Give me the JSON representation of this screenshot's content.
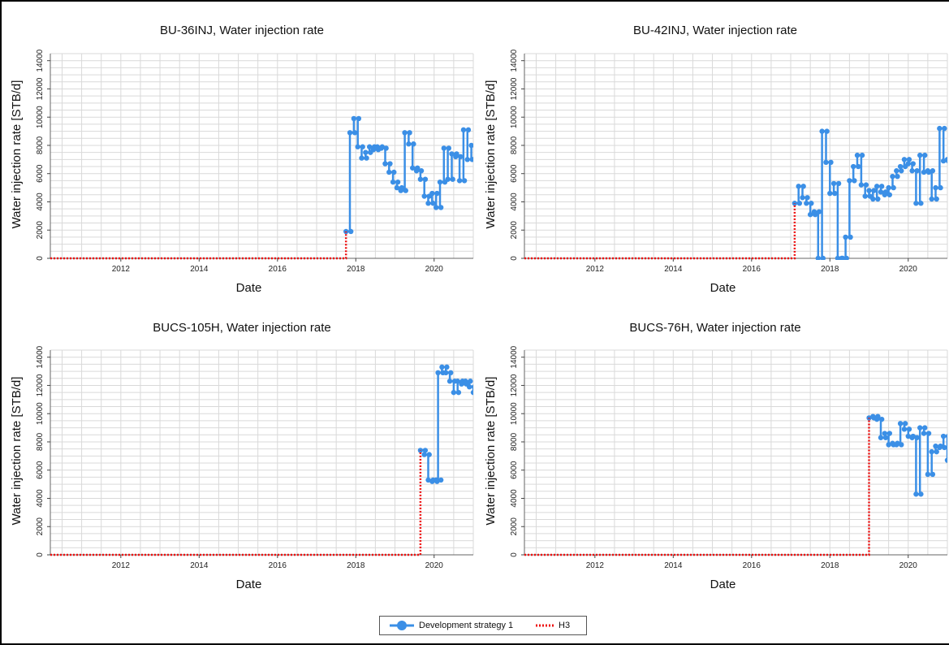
{
  "colors": {
    "series1": "#3b8fe6",
    "series2": "#ee1111",
    "grid": "#d9d9d9"
  },
  "legend": {
    "placement": "bottom-center",
    "entries": [
      "Development strategy 1",
      "H3"
    ]
  },
  "chart_data": [
    {
      "type": "line",
      "title": "BU-36INJ, Water injection rate",
      "xlabel": "Date",
      "ylabel": "Water injection rate [STB/d]",
      "xlim": [
        2010.2,
        2021.0
      ],
      "ylim": [
        0,
        14500
      ],
      "xticks": [
        2012,
        2014,
        2016,
        2018,
        2020
      ],
      "yticks": [
        0,
        2000,
        4000,
        6000,
        8000,
        10000,
        12000,
        14000
      ],
      "grid": true,
      "series": [
        {
          "name": "Development strategy 1",
          "style": "step-markers",
          "x": [
            2017.75,
            2017.85,
            2017.95,
            2018.05,
            2018.15,
            2018.25,
            2018.35,
            2018.45,
            2018.55,
            2018.65,
            2018.75,
            2018.85,
            2018.95,
            2019.05,
            2019.15,
            2019.25,
            2019.35,
            2019.45,
            2019.55,
            2019.65,
            2019.75,
            2019.85,
            2019.95,
            2020.05,
            2020.15,
            2020.25,
            2020.35,
            2020.45,
            2020.55,
            2020.65,
            2020.75,
            2020.85,
            2020.95
          ],
          "y": [
            1900,
            8900,
            9900,
            7900,
            7100,
            7500,
            7900,
            7700,
            7900,
            7800,
            6700,
            6100,
            5400,
            5000,
            4800,
            8900,
            8100,
            6400,
            6200,
            5600,
            4400,
            3900,
            4600,
            3600,
            5400,
            7800,
            5600,
            7400,
            7200,
            5500,
            9100,
            7000,
            8000
          ]
        },
        {
          "name": "H3",
          "style": "dotted",
          "x": [
            2010.2,
            2017.75,
            2017.75
          ],
          "y": [
            0,
            0,
            1900
          ]
        }
      ]
    },
    {
      "type": "line",
      "title": "BU-42INJ, Water injection rate",
      "xlabel": "Date",
      "ylabel": "Water injection rate [STB/d]",
      "xlim": [
        2010.2,
        2021.0
      ],
      "ylim": [
        0,
        14500
      ],
      "xticks": [
        2012,
        2014,
        2016,
        2018,
        2020
      ],
      "yticks": [
        0,
        2000,
        4000,
        6000,
        8000,
        10000,
        12000,
        14000
      ],
      "grid": true,
      "series": [
        {
          "name": "Development strategy 1",
          "style": "step-markers",
          "x": [
            2017.1,
            2017.2,
            2017.3,
            2017.4,
            2017.5,
            2017.6,
            2017.7,
            2017.8,
            2017.9,
            2018.0,
            2018.1,
            2018.2,
            2018.3,
            2018.4,
            2018.5,
            2018.6,
            2018.7,
            2018.8,
            2018.9,
            2019.0,
            2019.1,
            2019.2,
            2019.3,
            2019.4,
            2019.5,
            2019.6,
            2019.7,
            2019.8,
            2019.9,
            2020.0,
            2020.1,
            2020.2,
            2020.3,
            2020.4,
            2020.5,
            2020.6,
            2020.7,
            2020.8,
            2020.9,
            2021.0
          ],
          "y": [
            3900,
            5100,
            4300,
            3900,
            3100,
            3300,
            0,
            9000,
            6800,
            4600,
            5300,
            0,
            0,
            1500,
            5500,
            6500,
            7300,
            5200,
            4400,
            4800,
            4200,
            5100,
            4700,
            4500,
            5000,
            5800,
            6200,
            6500,
            7000,
            6700,
            6200,
            3900,
            7300,
            6100,
            6200,
            4200,
            5000,
            9200,
            6900,
            7000
          ]
        },
        {
          "name": "H3",
          "style": "dotted",
          "x": [
            2010.2,
            2017.1,
            2017.1
          ],
          "y": [
            0,
            0,
            3900
          ]
        }
      ]
    },
    {
      "type": "line",
      "title": "BUCS-105H, Water injection rate",
      "xlabel": "Date",
      "ylabel": "Water injection rate [STB/d]",
      "xlim": [
        2010.2,
        2021.0
      ],
      "ylim": [
        0,
        14500
      ],
      "xticks": [
        2012,
        2014,
        2016,
        2018,
        2020
      ],
      "yticks": [
        0,
        2000,
        4000,
        6000,
        8000,
        10000,
        12000,
        14000
      ],
      "grid": true,
      "series": [
        {
          "name": "Development strategy 1",
          "style": "step-markers",
          "x": [
            2019.65,
            2019.75,
            2019.85,
            2019.95,
            2020.05,
            2020.1,
            2020.2,
            2020.3,
            2020.4,
            2020.5,
            2020.6,
            2020.7,
            2020.8,
            2020.9,
            2021.0
          ],
          "y": [
            7400,
            7100,
            5300,
            5200,
            5300,
            12900,
            13300,
            12900,
            12300,
            11500,
            12300,
            12100,
            12300,
            11900,
            11500
          ]
        },
        {
          "name": "H3",
          "style": "dotted",
          "x": [
            2010.2,
            2019.65,
            2019.65
          ],
          "y": [
            0,
            0,
            7400
          ]
        }
      ]
    },
    {
      "type": "line",
      "title": "BUCS-76H, Water injection rate",
      "xlabel": "Date",
      "ylabel": "Water injection rate [STB/d]",
      "xlim": [
        2010.2,
        2021.0
      ],
      "ylim": [
        0,
        14500
      ],
      "xticks": [
        2012,
        2014,
        2016,
        2018,
        2020
      ],
      "yticks": [
        0,
        2000,
        4000,
        6000,
        8000,
        10000,
        12000,
        14000
      ],
      "grid": true,
      "series": [
        {
          "name": "Development strategy 1",
          "style": "step-markers",
          "x": [
            2019.0,
            2019.1,
            2019.2,
            2019.3,
            2019.4,
            2019.5,
            2019.6,
            2019.7,
            2019.8,
            2019.9,
            2020.0,
            2020.1,
            2020.2,
            2020.3,
            2020.4,
            2020.5,
            2020.6,
            2020.7,
            2020.8,
            2020.9,
            2021.0
          ],
          "y": [
            9700,
            9800,
            9600,
            8300,
            8600,
            7800,
            7900,
            7800,
            9300,
            8900,
            8400,
            8300,
            4300,
            9000,
            8600,
            5700,
            7300,
            7700,
            7600,
            8400,
            6700
          ]
        },
        {
          "name": "H3",
          "style": "dotted",
          "x": [
            2010.2,
            2019.0,
            2019.0
          ],
          "y": [
            0,
            0,
            9700
          ]
        }
      ]
    }
  ]
}
